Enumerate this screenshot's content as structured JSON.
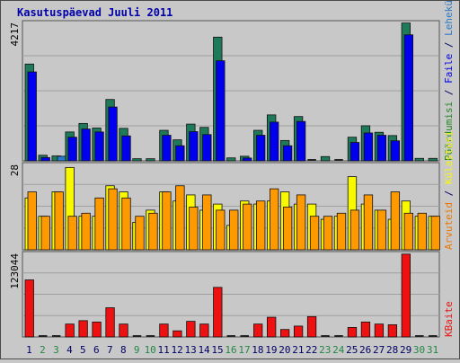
{
  "title": "Kasutuspäevad Juuli 2011",
  "colors": {
    "background": "#c8c8c8",
    "title": "#0000aa",
    "grid": "#a0a0a0",
    "visits": "#1f7a5a",
    "pages": "#0000ee",
    "files": "#2a7ac9",
    "hits_right_label": "#228822",
    "sites": "#f8f800",
    "kbytes": "#ee1111",
    "weekday_label": "#000066",
    "weekend_label": "#228844"
  },
  "chart_data": [
    {
      "type": "bar",
      "name": "top",
      "ymax_label": "4217",
      "ylim": [
        0,
        4217
      ],
      "categories": [
        "1",
        "2",
        "3",
        "4",
        "5",
        "6",
        "7",
        "8",
        "9",
        "10",
        "11",
        "12",
        "13",
        "14",
        "15",
        "16",
        "17",
        "18",
        "19",
        "20",
        "21",
        "22",
        "23",
        "24",
        "25",
        "26",
        "27",
        "28",
        "29",
        "30",
        "31"
      ],
      "right_labels": [
        {
          "text": "Pöördumisi",
          "color": "#228822"
        },
        {
          "text": " / ",
          "color": "#000066"
        },
        {
          "text": "Faile",
          "color": "#0000ee"
        },
        {
          "text": " / ",
          "color": "#000066"
        },
        {
          "text": "Lehekülgi",
          "color": "#2a7ac9"
        }
      ],
      "series": [
        {
          "name": "Pöördumisi",
          "color": "#1f7a5a",
          "values": [
            2950,
            170,
            150,
            880,
            1140,
            1000,
            1870,
            990,
            65,
            65,
            930,
            640,
            1120,
            1020,
            3770,
            90,
            140,
            930,
            1400,
            620,
            1350,
            0,
            130,
            0,
            720,
            1070,
            870,
            770,
            4200,
            75,
            75
          ]
        },
        {
          "name": "Faile",
          "color": "#0000ee",
          "values": [
            2710,
            100,
            0,
            720,
            970,
            880,
            1640,
            760,
            0,
            0,
            780,
            460,
            890,
            800,
            3050,
            0,
            85,
            780,
            1180,
            460,
            1200,
            0,
            0,
            0,
            560,
            850,
            780,
            610,
            3840,
            0,
            0
          ]
        },
        {
          "name": "Lehekülgi",
          "color": "#2a7ac9",
          "values": [
            0,
            0,
            140,
            0,
            0,
            0,
            0,
            0,
            0,
            0,
            0,
            0,
            0,
            0,
            0,
            0,
            0,
            0,
            0,
            0,
            0,
            0,
            0,
            0,
            0,
            0,
            0,
            0,
            0,
            0,
            0
          ]
        }
      ]
    },
    {
      "type": "bar",
      "name": "middle",
      "ymax_label": "28",
      "ylim": [
        0,
        28
      ],
      "right_labels": [
        {
          "text": "Arvuteid",
          "color": "#ee7700"
        },
        {
          "text": " / ",
          "color": "#000066"
        },
        {
          "text": "Külastusi",
          "color": "#f8f800"
        }
      ],
      "series": [
        {
          "name": "Külastusi",
          "color": "#f8f800",
          "values": [
            17,
            11,
            19,
            27,
            11,
            11,
            21,
            19,
            9,
            13,
            19,
            16,
            18,
            13,
            15,
            8,
            16,
            15,
            16,
            19,
            15,
            15,
            10,
            11,
            24,
            15,
            13,
            10,
            16,
            11,
            11
          ]
        },
        {
          "name": "Arvuteid",
          "color": "#ff9900",
          "values": [
            19,
            11,
            19,
            11,
            12,
            17,
            20,
            17,
            11,
            12,
            19,
            21,
            14,
            18,
            13,
            13,
            15,
            16,
            20,
            14,
            18,
            11,
            11,
            12,
            13,
            18,
            13,
            19,
            12,
            12,
            11
          ]
        }
      ]
    },
    {
      "type": "bar",
      "name": "bottom",
      "ymax_label": "123044",
      "ylim": [
        0,
        123044
      ],
      "right_labels": [
        {
          "text": "KBaite",
          "color": "#ee1111"
        }
      ],
      "series": [
        {
          "name": "KBaite",
          "color": "#ee1111",
          "values": [
            84000,
            0,
            0,
            19000,
            24000,
            22000,
            43000,
            19000,
            0,
            0,
            19000,
            9000,
            23000,
            19000,
            73000,
            0,
            0,
            19000,
            29000,
            11000,
            16000,
            30000,
            0,
            0,
            14000,
            22000,
            19000,
            18000,
            122000,
            0,
            0
          ]
        }
      ]
    }
  ],
  "weekends": [
    2,
    3,
    9,
    10,
    16,
    17,
    23,
    24,
    30,
    31
  ]
}
